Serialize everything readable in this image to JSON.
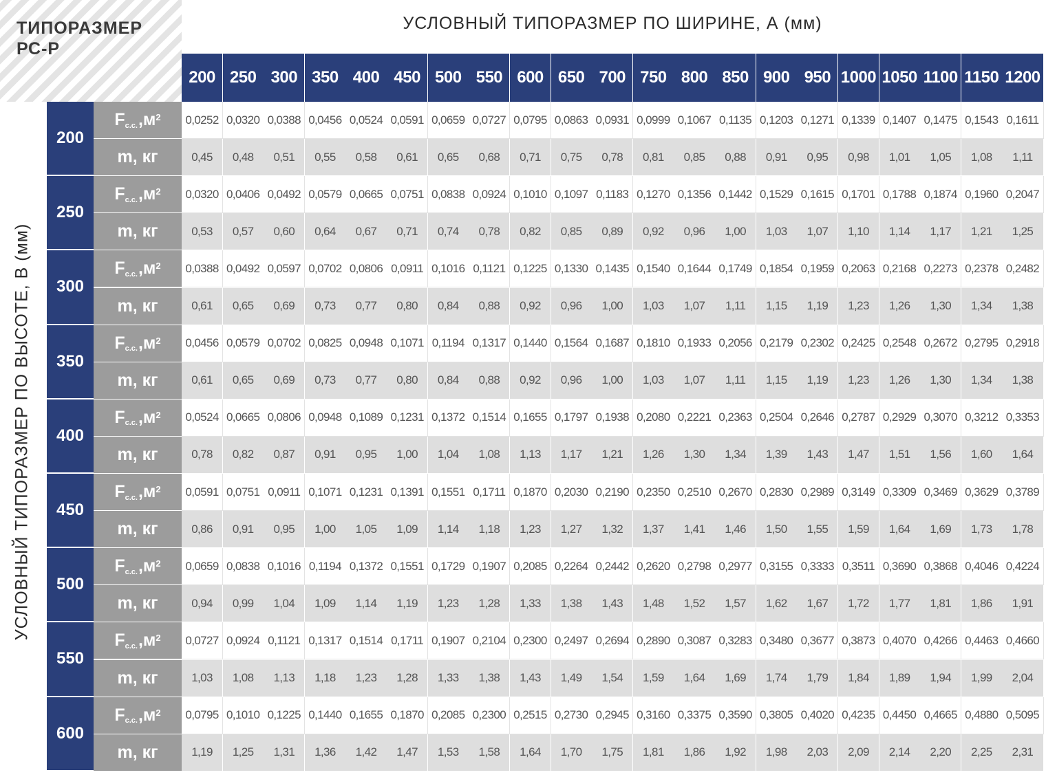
{
  "titles": {
    "corner": "ТИПОРАЗМЕР\nРС-Р",
    "width": "УСЛОВНЫЙ ТИПОРАЗМЕР ПО ШИРИНЕ, А (мм)",
    "height": "УСЛОВНЫЙ ТИПОРАЗМЕР ПО ВЫСОТЕ, В (мм)"
  },
  "labels": {
    "f_main": "F",
    "f_sub": "с.с.",
    "f_unit": ",м",
    "f_exp": "2",
    "m": "m, кг"
  },
  "widths": [
    "200",
    "250",
    "300",
    "350",
    "400",
    "450",
    "500",
    "550",
    "600",
    "650",
    "700",
    "750",
    "800",
    "850",
    "900",
    "950",
    "1000",
    "1050",
    "1100",
    "1150",
    "1200"
  ],
  "rows": [
    {
      "height": "200",
      "f": [
        "0,0252",
        "0,0320",
        "0,0388",
        "0,0456",
        "0,0524",
        "0,0591",
        "0,0659",
        "0,0727",
        "0,0795",
        "0,0863",
        "0,0931",
        "0,0999",
        "0,1067",
        "0,1135",
        "0,1203",
        "0,1271",
        "0,1339",
        "0,1407",
        "0,1475",
        "0,1543",
        "0,1611"
      ],
      "m": [
        "0,45",
        "0,48",
        "0,51",
        "0,55",
        "0,58",
        "0,61",
        "0,65",
        "0,68",
        "0,71",
        "0,75",
        "0,78",
        "0,81",
        "0,85",
        "0,88",
        "0,91",
        "0,95",
        "0,98",
        "1,01",
        "1,05",
        "1,08",
        "1,11"
      ]
    },
    {
      "height": "250",
      "f": [
        "0,0320",
        "0,0406",
        "0,0492",
        "0,0579",
        "0,0665",
        "0,0751",
        "0,0838",
        "0,0924",
        "0,1010",
        "0,1097",
        "0,1183",
        "0,1270",
        "0,1356",
        "0,1442",
        "0,1529",
        "0,1615",
        "0,1701",
        "0,1788",
        "0,1874",
        "0,1960",
        "0,2047"
      ],
      "m": [
        "0,53",
        "0,57",
        "0,60",
        "0,64",
        "0,67",
        "0,71",
        "0,74",
        "0,78",
        "0,82",
        "0,85",
        "0,89",
        "0,92",
        "0,96",
        "1,00",
        "1,03",
        "1,07",
        "1,10",
        "1,14",
        "1,17",
        "1,21",
        "1,25"
      ]
    },
    {
      "height": "300",
      "f": [
        "0,0388",
        "0,0492",
        "0,0597",
        "0,0702",
        "0,0806",
        "0,0911",
        "0,1016",
        "0,1121",
        "0,1225",
        "0,1330",
        "0,1435",
        "0,1540",
        "0,1644",
        "0,1749",
        "0,1854",
        "0,1959",
        "0,2063",
        "0,2168",
        "0,2273",
        "0,2378",
        "0,2482"
      ],
      "m": [
        "0,61",
        "0,65",
        "0,69",
        "0,73",
        "0,77",
        "0,80",
        "0,84",
        "0,88",
        "0,92",
        "0,96",
        "1,00",
        "1,03",
        "1,07",
        "1,11",
        "1,15",
        "1,19",
        "1,23",
        "1,26",
        "1,30",
        "1,34",
        "1,38"
      ]
    },
    {
      "height": "350",
      "f": [
        "0,0456",
        "0,0579",
        "0,0702",
        "0,0825",
        "0,0948",
        "0,1071",
        "0,1194",
        "0,1317",
        "0,1440",
        "0,1564",
        "0,1687",
        "0,1810",
        "0,1933",
        "0,2056",
        "0,2179",
        "0,2302",
        "0,2425",
        "0,2548",
        "0,2672",
        "0,2795",
        "0,2918"
      ],
      "m": [
        "0,61",
        "0,65",
        "0,69",
        "0,73",
        "0,77",
        "0,80",
        "0,84",
        "0,88",
        "0,92",
        "0,96",
        "1,00",
        "1,03",
        "1,07",
        "1,11",
        "1,15",
        "1,19",
        "1,23",
        "1,26",
        "1,30",
        "1,34",
        "1,38"
      ]
    },
    {
      "height": "400",
      "f": [
        "0,0524",
        "0,0665",
        "0,0806",
        "0,0948",
        "0,1089",
        "0,1231",
        "0,1372",
        "0,1514",
        "0,1655",
        "0,1797",
        "0,1938",
        "0,2080",
        "0,2221",
        "0,2363",
        "0,2504",
        "0,2646",
        "0,2787",
        "0,2929",
        "0,3070",
        "0,3212",
        "0,3353"
      ],
      "m": [
        "0,78",
        "0,82",
        "0,87",
        "0,91",
        "0,95",
        "1,00",
        "1,04",
        "1,08",
        "1,13",
        "1,17",
        "1,21",
        "1,26",
        "1,30",
        "1,34",
        "1,39",
        "1,43",
        "1,47",
        "1,51",
        "1,56",
        "1,60",
        "1,64"
      ]
    },
    {
      "height": "450",
      "f": [
        "0,0591",
        "0,0751",
        "0,0911",
        "0,1071",
        "0,1231",
        "0,1391",
        "0,1551",
        "0,1711",
        "0,1870",
        "0,2030",
        "0,2190",
        "0,2350",
        "0,2510",
        "0,2670",
        "0,2830",
        "0,2989",
        "0,3149",
        "0,3309",
        "0,3469",
        "0,3629",
        "0,3789"
      ],
      "m": [
        "0,86",
        "0,91",
        "0,95",
        "1,00",
        "1,05",
        "1,09",
        "1,14",
        "1,18",
        "1,23",
        "1,27",
        "1,32",
        "1,37",
        "1,41",
        "1,46",
        "1,50",
        "1,55",
        "1,59",
        "1,64",
        "1,69",
        "1,73",
        "1,78"
      ]
    },
    {
      "height": "500",
      "f": [
        "0,0659",
        "0,0838",
        "0,1016",
        "0,1194",
        "0,1372",
        "0,1551",
        "0,1729",
        "0,1907",
        "0,2085",
        "0,2264",
        "0,2442",
        "0,2620",
        "0,2798",
        "0,2977",
        "0,3155",
        "0,3333",
        "0,3511",
        "0,3690",
        "0,3868",
        "0,4046",
        "0,4224"
      ],
      "m": [
        "0,94",
        "0,99",
        "1,04",
        "1,09",
        "1,14",
        "1,19",
        "1,23",
        "1,28",
        "1,33",
        "1,38",
        "1,43",
        "1,48",
        "1,52",
        "1,57",
        "1,62",
        "1,67",
        "1,72",
        "1,77",
        "1,81",
        "1,86",
        "1,91"
      ]
    },
    {
      "height": "550",
      "f": [
        "0,0727",
        "0,0924",
        "0,1121",
        "0,1317",
        "0,1514",
        "0,1711",
        "0,1907",
        "0,2104",
        "0,2300",
        "0,2497",
        "0,2694",
        "0,2890",
        "0,3087",
        "0,3283",
        "0,3480",
        "0,3677",
        "0,3873",
        "0,4070",
        "0,4266",
        "0,4463",
        "0,4660"
      ],
      "m": [
        "1,03",
        "1,08",
        "1,13",
        "1,18",
        "1,23",
        "1,28",
        "1,33",
        "1,38",
        "1,43",
        "1,49",
        "1,54",
        "1,59",
        "1,64",
        "1,69",
        "1,74",
        "1,79",
        "1,84",
        "1,89",
        "1,94",
        "1,99",
        "2,04"
      ]
    },
    {
      "height": "600",
      "f": [
        "0,0795",
        "0,1010",
        "0,1225",
        "0,1440",
        "0,1655",
        "0,1870",
        "0,2085",
        "0,2300",
        "0,2515",
        "0,2730",
        "0,2945",
        "0,3160",
        "0,3375",
        "0,3590",
        "0,3805",
        "0,4020",
        "0,4235",
        "0,4450",
        "0,4665",
        "0,4880",
        "0,5095"
      ],
      "m": [
        "1,19",
        "1,25",
        "1,31",
        "1,36",
        "1,42",
        "1,47",
        "1,53",
        "1,58",
        "1,64",
        "1,70",
        "1,75",
        "1,81",
        "1,86",
        "1,92",
        "1,98",
        "2,03",
        "2,09",
        "2,14",
        "2,20",
        "2,25",
        "2,31"
      ]
    }
  ]
}
